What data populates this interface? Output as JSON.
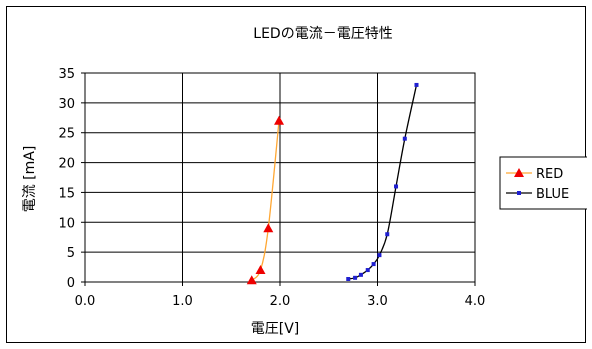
{
  "chart_data": {
    "type": "scatter",
    "title": "LEDの電流－電圧特性",
    "xlabel": "電圧[V]",
    "ylabel": "電流 [mA]",
    "xlim": [
      0,
      4
    ],
    "ylim": [
      0,
      35
    ],
    "x_ticks": [
      "0.0",
      "1.0",
      "2.0",
      "3.0",
      "4.0"
    ],
    "y_ticks": [
      "0",
      "5",
      "10",
      "15",
      "20",
      "25",
      "30",
      "35"
    ],
    "grid": true,
    "legend_position": "right",
    "series": [
      {
        "name": "RED",
        "color": "#ffa733",
        "marker": "triangle",
        "marker_color": "#ee0000",
        "x": [
          1.71,
          1.8,
          1.88,
          1.99
        ],
        "y": [
          0.3,
          2.0,
          9.0,
          27.0
        ]
      },
      {
        "name": "BLUE",
        "color": "#000000",
        "marker": "square",
        "marker_color": "#1f1fd0",
        "x": [
          2.7,
          2.77,
          2.83,
          2.9,
          2.96,
          3.02,
          3.1,
          3.19,
          3.28,
          3.4
        ],
        "y": [
          0.5,
          0.7,
          1.2,
          2.0,
          3.0,
          4.5,
          8.0,
          16.0,
          24.0,
          33.0
        ]
      }
    ]
  }
}
